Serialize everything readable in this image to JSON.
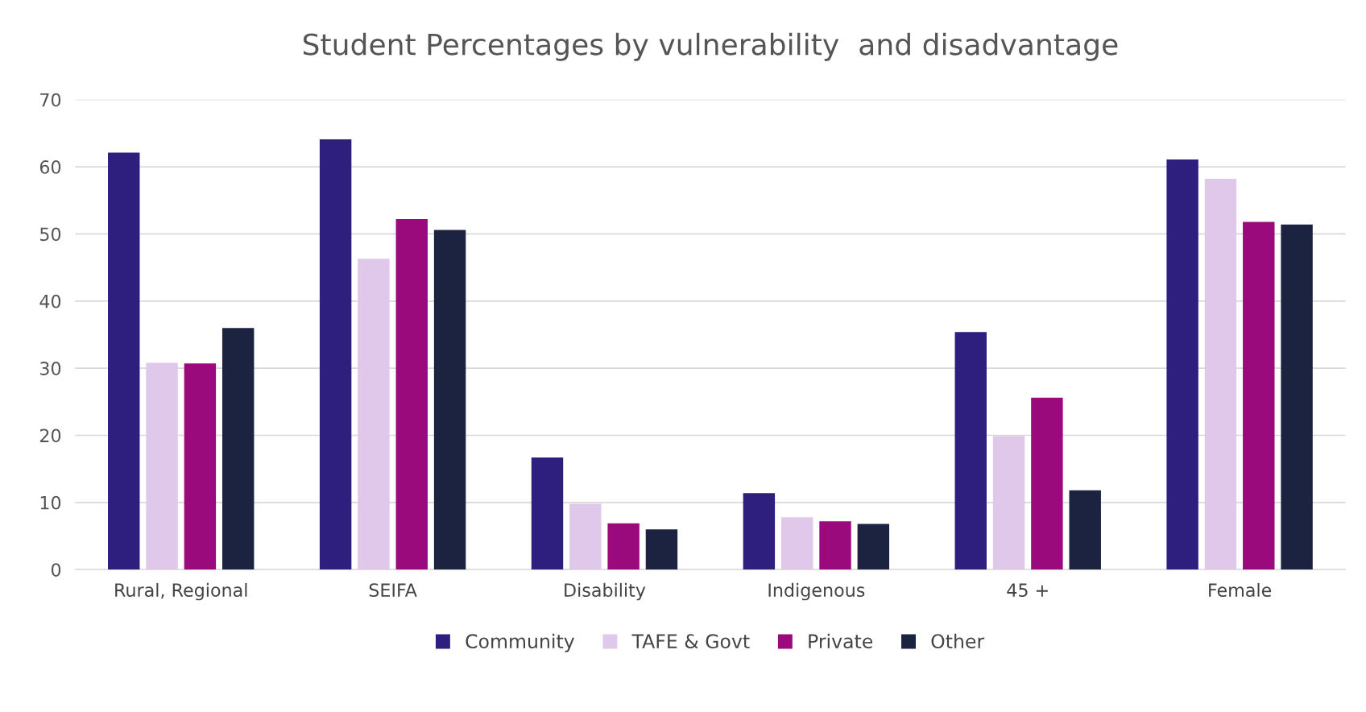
{
  "chart_data": {
    "type": "bar",
    "title": "Student Percentages by vulnerability  and disadvantage",
    "categories": [
      "Rural, Regional",
      "SEIFA",
      "Disability",
      "Indigenous",
      "45 +",
      "Female"
    ],
    "series": [
      {
        "name": "Community",
        "color": "#2e1f7f",
        "values": [
          62.1,
          64.1,
          16.7,
          11.4,
          35.4,
          61.1
        ]
      },
      {
        "name": "TAFE & Govt",
        "color": "#e0c8ea",
        "values": [
          30.8,
          46.3,
          9.8,
          7.8,
          19.9,
          58.2
        ]
      },
      {
        "name": "Private",
        "color": "#9b0a7d",
        "values": [
          30.7,
          52.2,
          6.9,
          7.2,
          25.6,
          51.8
        ]
      },
      {
        "name": "Other",
        "color": "#1b2340",
        "values": [
          36.0,
          50.6,
          6.0,
          6.8,
          11.8,
          51.4
        ]
      }
    ],
    "ylim": [
      0,
      70
    ],
    "yticks": [
      0,
      10,
      20,
      30,
      40,
      50,
      60,
      70
    ],
    "grid": "y",
    "legend": "bottom"
  }
}
